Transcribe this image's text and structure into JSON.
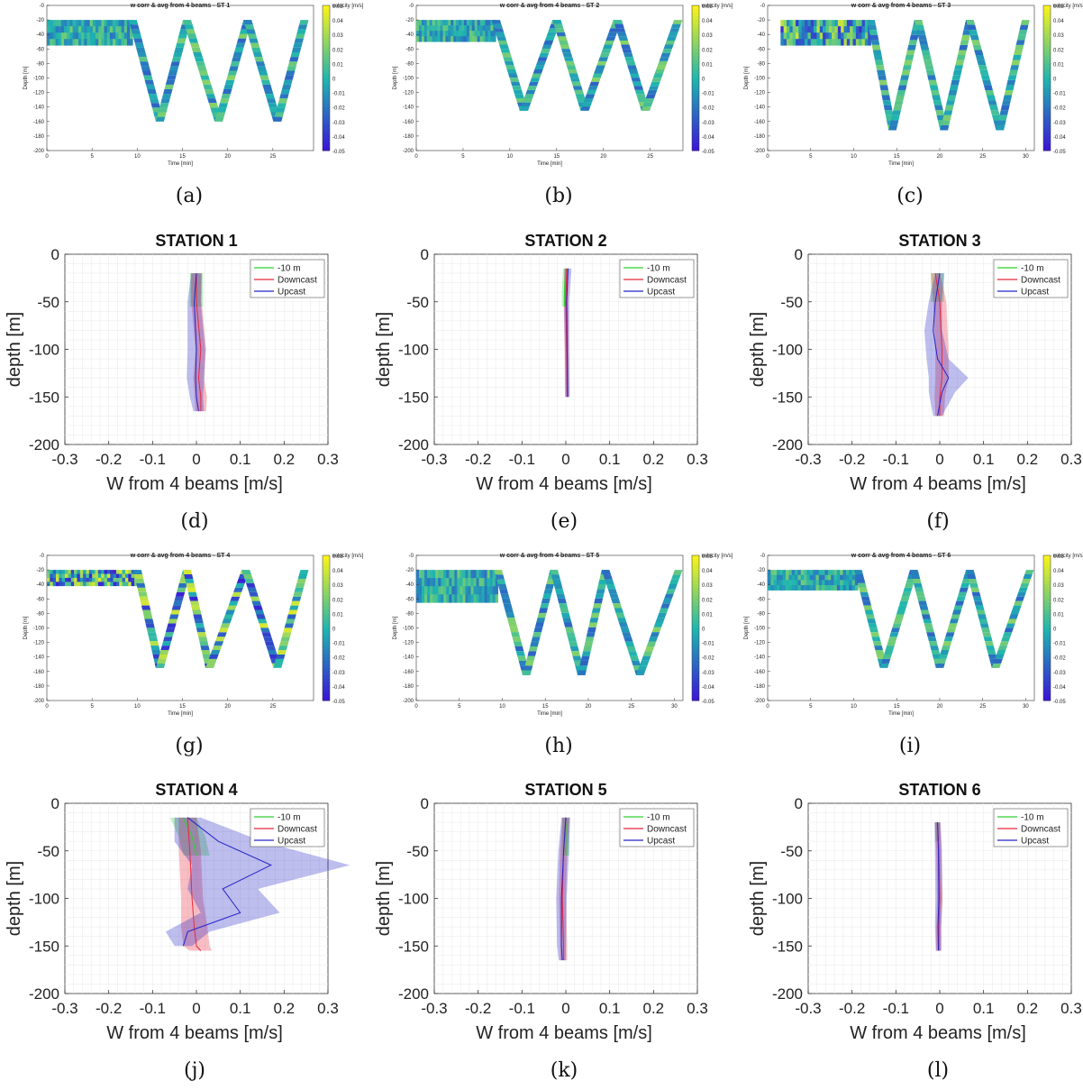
{
  "colors": {
    "green": "#2fd12f",
    "red": "#e8283c",
    "blue": "#2424c8",
    "mapLow": "#3b10d8",
    "mapMid": "#1fb4b0",
    "mapHigh": "#f8f21a"
  },
  "heatmaps": {
    "ylabel": "Depth [m]",
    "xlabel": "Time [min]",
    "cblabel": "velocity [m/s]",
    "cbticks": [
      "0.05",
      "0.04",
      "0.03",
      "0.02",
      "0.01",
      "0",
      "-0.01",
      "-0.02",
      "-0.03",
      "-0.04",
      "-0.05"
    ],
    "yticks": [
      "-0",
      "-20",
      "-40",
      "-60",
      "-80",
      "-100",
      "-120",
      "-140",
      "-160",
      "-180",
      "-200"
    ],
    "items": [
      {
        "caption": "(a)",
        "title": "w corr & avg from 4 beams - ST 1",
        "xticks": [
          "0",
          "5",
          "10",
          "15",
          "20",
          "25"
        ],
        "xmax": 29.5,
        "flatEnd": 9.5,
        "flatBottom": -55,
        "vbottom": -160,
        "peaks": [
          9.5,
          15.5,
          22.2,
          28.5
        ],
        "troughs": [
          12.5,
          19,
          25.5
        ]
      },
      {
        "caption": "(b)",
        "title": "w corr & avg from 4 beams - ST 2",
        "xticks": [
          "0",
          "5",
          "10",
          "15",
          "20",
          "25"
        ],
        "xmax": 28.5,
        "flatEnd": 8.5,
        "flatBottom": -50,
        "vbottom": -145,
        "peaks": [
          8.5,
          15,
          21.5,
          28
        ],
        "troughs": [
          11.5,
          18,
          24.5
        ]
      },
      {
        "caption": "(c)",
        "title": "w corr & avg from 4 beams - ST 3",
        "xticks": [
          "0",
          "5",
          "10",
          "15",
          "20",
          "25",
          "30"
        ],
        "xmax": 31,
        "flatEnd": 12,
        "flatBottom": -55,
        "vbottom": -172,
        "peaks": [
          12,
          17.5,
          23.5,
          30
        ],
        "troughs": [
          14.5,
          20.5,
          27
        ]
      },
      {
        "caption": "(g)",
        "title": "w corr & avg from 4 beams - ST 4",
        "xticks": [
          "0",
          "5",
          "10",
          "15",
          "20",
          "25"
        ],
        "xmax": 29.5,
        "flatEnd": 10,
        "flatBottom": -42,
        "vbottom": -155,
        "peaks": [
          10,
          15.5,
          22,
          28.5
        ],
        "troughs": [
          12.5,
          18,
          25.5
        ]
      },
      {
        "caption": "(h)",
        "title": "w corr & avg from 4 beams - ST 5",
        "xticks": [
          "0",
          "5",
          "10",
          "15",
          "20",
          "25",
          "30"
        ],
        "xmax": 31,
        "flatEnd": 9.5,
        "flatBottom": -65,
        "vbottom": -165,
        "peaks": [
          9.5,
          16,
          22,
          30.5
        ],
        "troughs": [
          12.8,
          19.2,
          26
        ]
      },
      {
        "caption": "(i)",
        "title": "w corr & avg from 4 beams - ST 6",
        "xticks": [
          "0",
          "5",
          "10",
          "15",
          "20",
          "25",
          "30"
        ],
        "xmax": 31,
        "flatEnd": 10.5,
        "flatBottom": -48,
        "vbottom": -155,
        "peaks": [
          10.5,
          17,
          23.5,
          30.5
        ],
        "troughs": [
          13.5,
          20,
          26.5
        ]
      }
    ]
  },
  "profiles": {
    "xlabel": "W from 4 beams [m/s]",
    "ylabel": "depth [m]",
    "xticks": [
      "-0.3",
      "-0.2",
      "-0.1",
      "0",
      "0.1",
      "0.2",
      "0.3"
    ],
    "yticks": [
      "0",
      "-50",
      "-100",
      "-150",
      "-200"
    ],
    "legend": [
      "-10 m",
      "Downcast",
      "Upcast"
    ],
    "xlim": [
      -0.3,
      0.3
    ],
    "ylim": [
      -200,
      0
    ]
  },
  "chart_data": [
    {
      "type": "line",
      "caption": "(d)",
      "title": "STATION 1",
      "series": [
        {
          "name": "-10 m",
          "y": [
            -20,
            -35,
            -55
          ],
          "x": [
            0.0,
            0.0,
            0.0
          ],
          "spread": [
            0.015,
            0.015,
            0.015
          ]
        },
        {
          "name": "Downcast",
          "y": [
            -20,
            -50,
            -100,
            -130,
            -150,
            -165
          ],
          "x": [
            0.0,
            0.0,
            0.01,
            0.005,
            0.01,
            0.01
          ],
          "spread": [
            0.012,
            0.012,
            0.012,
            0.012,
            0.014,
            0.012
          ]
        },
        {
          "name": "Upcast",
          "y": [
            -20,
            -50,
            -100,
            -130,
            -150,
            -165
          ],
          "x": [
            0.0,
            -0.005,
            0.0,
            -0.002,
            0.0,
            0.005
          ],
          "spread": [
            0.012,
            0.015,
            0.02,
            0.02,
            0.015,
            0.012
          ]
        }
      ]
    },
    {
      "type": "line",
      "caption": "(e)",
      "title": "STATION 2",
      "series": [
        {
          "name": "-10 m",
          "y": [
            -15,
            -35,
            -55
          ],
          "x": [
            0.0,
            -0.003,
            -0.003
          ],
          "spread": [
            0.006,
            0.006,
            0.006
          ]
        },
        {
          "name": "Downcast",
          "y": [
            -15,
            -50,
            -100,
            -150
          ],
          "x": [
            0.002,
            0.0,
            0.002,
            0.003
          ],
          "spread": [
            0.005,
            0.005,
            0.005,
            0.005
          ]
        },
        {
          "name": "Upcast",
          "y": [
            -15,
            -50,
            -100,
            -150
          ],
          "x": [
            0.005,
            0.002,
            0.003,
            0.004
          ],
          "spread": [
            0.008,
            0.006,
            0.005,
            0.005
          ]
        }
      ]
    },
    {
      "type": "line",
      "caption": "(f)",
      "title": "STATION 3",
      "series": [
        {
          "name": "-10 m",
          "y": [
            -20,
            -35,
            -50
          ],
          "x": [
            -0.005,
            -0.005,
            -0.005
          ],
          "spread": [
            0.015,
            0.015,
            0.015
          ]
        },
        {
          "name": "Downcast",
          "y": [
            -20,
            -50,
            -100,
            -130,
            -150,
            -170
          ],
          "x": [
            -0.01,
            0.0,
            0.005,
            0.005,
            0.0,
            0.0
          ],
          "spread": [
            0.01,
            0.015,
            0.015,
            0.015,
            0.012,
            0.01
          ]
        },
        {
          "name": "Upcast",
          "y": [
            -20,
            -50,
            -80,
            -110,
            -130,
            -145,
            -170
          ],
          "x": [
            0.0,
            -0.01,
            -0.015,
            -0.005,
            0.02,
            0.005,
            -0.005
          ],
          "spread": [
            0.01,
            0.015,
            0.02,
            0.025,
            0.045,
            0.03,
            0.01
          ]
        }
      ]
    },
    {
      "type": "line",
      "caption": "(j)",
      "title": "STATION 4",
      "series": [
        {
          "name": "-10 m",
          "y": [
            -15,
            -35,
            -55
          ],
          "x": [
            -0.03,
            -0.01,
            0.0
          ],
          "spread": [
            0.03,
            0.03,
            0.03
          ]
        },
        {
          "name": "Downcast",
          "y": [
            -15,
            -50,
            -100,
            -130,
            -150,
            -155
          ],
          "x": [
            -0.02,
            -0.015,
            -0.01,
            -0.005,
            0.0,
            0.01
          ],
          "spread": [
            0.02,
            0.025,
            0.025,
            0.03,
            0.03,
            0.025
          ]
        },
        {
          "name": "Upcast",
          "y": [
            -15,
            -40,
            -65,
            -90,
            -115,
            -135,
            -150
          ],
          "x": [
            -0.02,
            0.05,
            0.17,
            0.06,
            0.1,
            -0.02,
            -0.03
          ],
          "spread": [
            0.03,
            0.1,
            0.18,
            0.08,
            0.09,
            0.05,
            0.02
          ]
        }
      ]
    },
    {
      "type": "line",
      "caption": "(k)",
      "title": "STATION 5",
      "series": [
        {
          "name": "-10 m",
          "y": [
            -15,
            -35,
            -55
          ],
          "x": [
            0.0,
            0.0,
            0.0
          ],
          "spread": [
            0.008,
            0.008,
            0.008
          ]
        },
        {
          "name": "Downcast",
          "y": [
            -15,
            -50,
            -100,
            -150,
            -165
          ],
          "x": [
            0.0,
            -0.005,
            -0.008,
            -0.005,
            -0.005
          ],
          "spread": [
            0.008,
            0.008,
            0.008,
            0.008,
            0.008
          ]
        },
        {
          "name": "Upcast",
          "y": [
            -15,
            -50,
            -100,
            -150,
            -165
          ],
          "x": [
            0.0,
            -0.005,
            -0.01,
            -0.01,
            -0.008
          ],
          "spread": [
            0.01,
            0.012,
            0.012,
            0.01,
            0.008
          ]
        }
      ]
    },
    {
      "type": "line",
      "caption": "(l)",
      "title": "STATION 6",
      "series": [
        {
          "name": "-10 m",
          "y": [
            -20,
            -30,
            -40
          ],
          "x": [
            -0.005,
            -0.005,
            -0.005
          ],
          "spread": [
            0.005,
            0.005,
            0.005
          ]
        },
        {
          "name": "Downcast",
          "y": [
            -20,
            -50,
            -100,
            -130,
            -155
          ],
          "x": [
            -0.005,
            -0.002,
            0.0,
            -0.002,
            -0.002
          ],
          "spread": [
            0.006,
            0.006,
            0.006,
            0.006,
            0.006
          ]
        },
        {
          "name": "Upcast",
          "y": [
            -20,
            -50,
            -100,
            -130,
            -155
          ],
          "x": [
            -0.005,
            -0.003,
            -0.002,
            -0.004,
            -0.003
          ],
          "spread": [
            0.007,
            0.008,
            0.008,
            0.007,
            0.006
          ]
        }
      ]
    }
  ]
}
